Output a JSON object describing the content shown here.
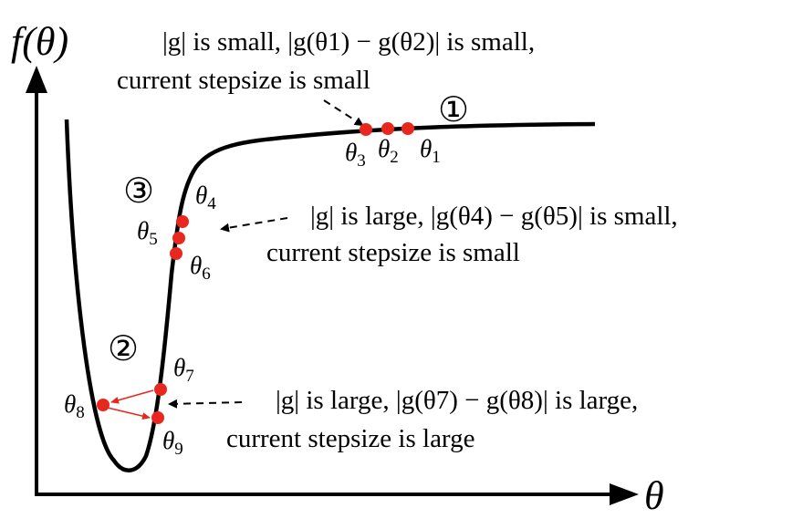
{
  "axes": {
    "y_label": "f(θ)",
    "x_label": "θ"
  },
  "regions": {
    "r1": "①",
    "r2": "②",
    "r3": "③"
  },
  "points": {
    "t1": {
      "sym": "θ",
      "sub": "1"
    },
    "t2": {
      "sym": "θ",
      "sub": "2"
    },
    "t3": {
      "sym": "θ",
      "sub": "3"
    },
    "t4": {
      "sym": "θ",
      "sub": "4"
    },
    "t5": {
      "sym": "θ",
      "sub": "5"
    },
    "t6": {
      "sym": "θ",
      "sub": "6"
    },
    "t7": {
      "sym": "θ",
      "sub": "7"
    },
    "t8": {
      "sym": "θ",
      "sub": "8"
    },
    "t9": {
      "sym": "θ",
      "sub": "9"
    }
  },
  "annotations": {
    "a1": {
      "line1": "|g| is small, |g(θ1) − g(θ2)| is small,",
      "line2": "current stepsize is small"
    },
    "a2": {
      "line1": "|g| is large, |g(θ4) − g(θ5)| is small,",
      "line2": "current stepsize is small"
    },
    "a3": {
      "line1": "|g| is large, |g(θ7) − g(θ8)| is large,",
      "line2": "current stepsize is large"
    }
  },
  "colors": {
    "curve": "#000000",
    "point": "#e8281e",
    "arrow": "#e8281e"
  }
}
